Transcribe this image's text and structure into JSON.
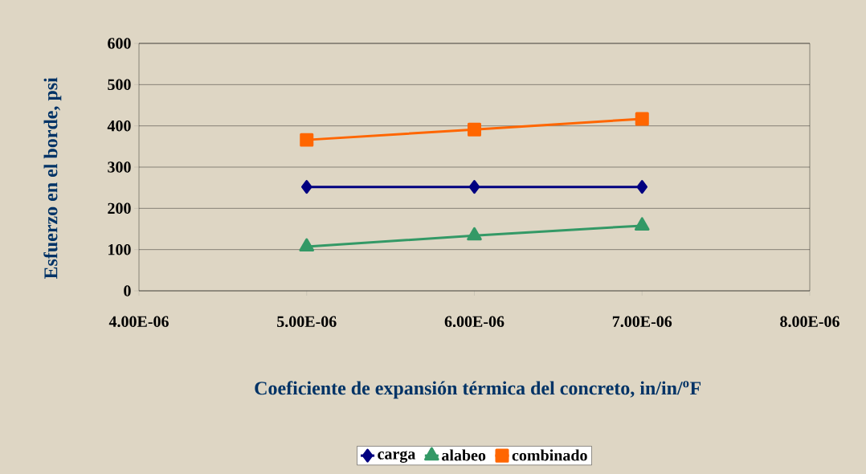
{
  "chart_data": {
    "type": "line",
    "xlabel": "Coeficiente de expansión térmica del concreto, in/in/$^{o}$F",
    "ylabel": "Esfuerzo en el borde, psi",
    "x": [
      5e-06,
      6e-06,
      7e-06
    ],
    "series": [
      {
        "name": "carga",
        "color": "#000080",
        "marker": "diamond",
        "values": [
          252,
          252,
          252
        ]
      },
      {
        "name": "alabeo",
        "color": "#339966",
        "marker": "triangle",
        "values": [
          107,
          134,
          158
        ]
      },
      {
        "name": "combinado",
        "color": "#ff6600",
        "marker": "square",
        "values": [
          366,
          391,
          417
        ]
      }
    ],
    "xlim": [
      4e-06,
      8e-06
    ],
    "xticks": [
      {
        "value": 4e-06,
        "label": "4.00E-06"
      },
      {
        "value": 5e-06,
        "label": "5.00E-06"
      },
      {
        "value": 6e-06,
        "label": "6.00E-06"
      },
      {
        "value": 7e-06,
        "label": "7.00E-06"
      },
      {
        "value": 8e-06,
        "label": "8.00E-06"
      }
    ],
    "ylim": [
      0,
      600
    ],
    "yticks": [
      0,
      100,
      200,
      300,
      400,
      500,
      600
    ],
    "grid": "y",
    "legend": "bottom",
    "line_style": "solid"
  }
}
